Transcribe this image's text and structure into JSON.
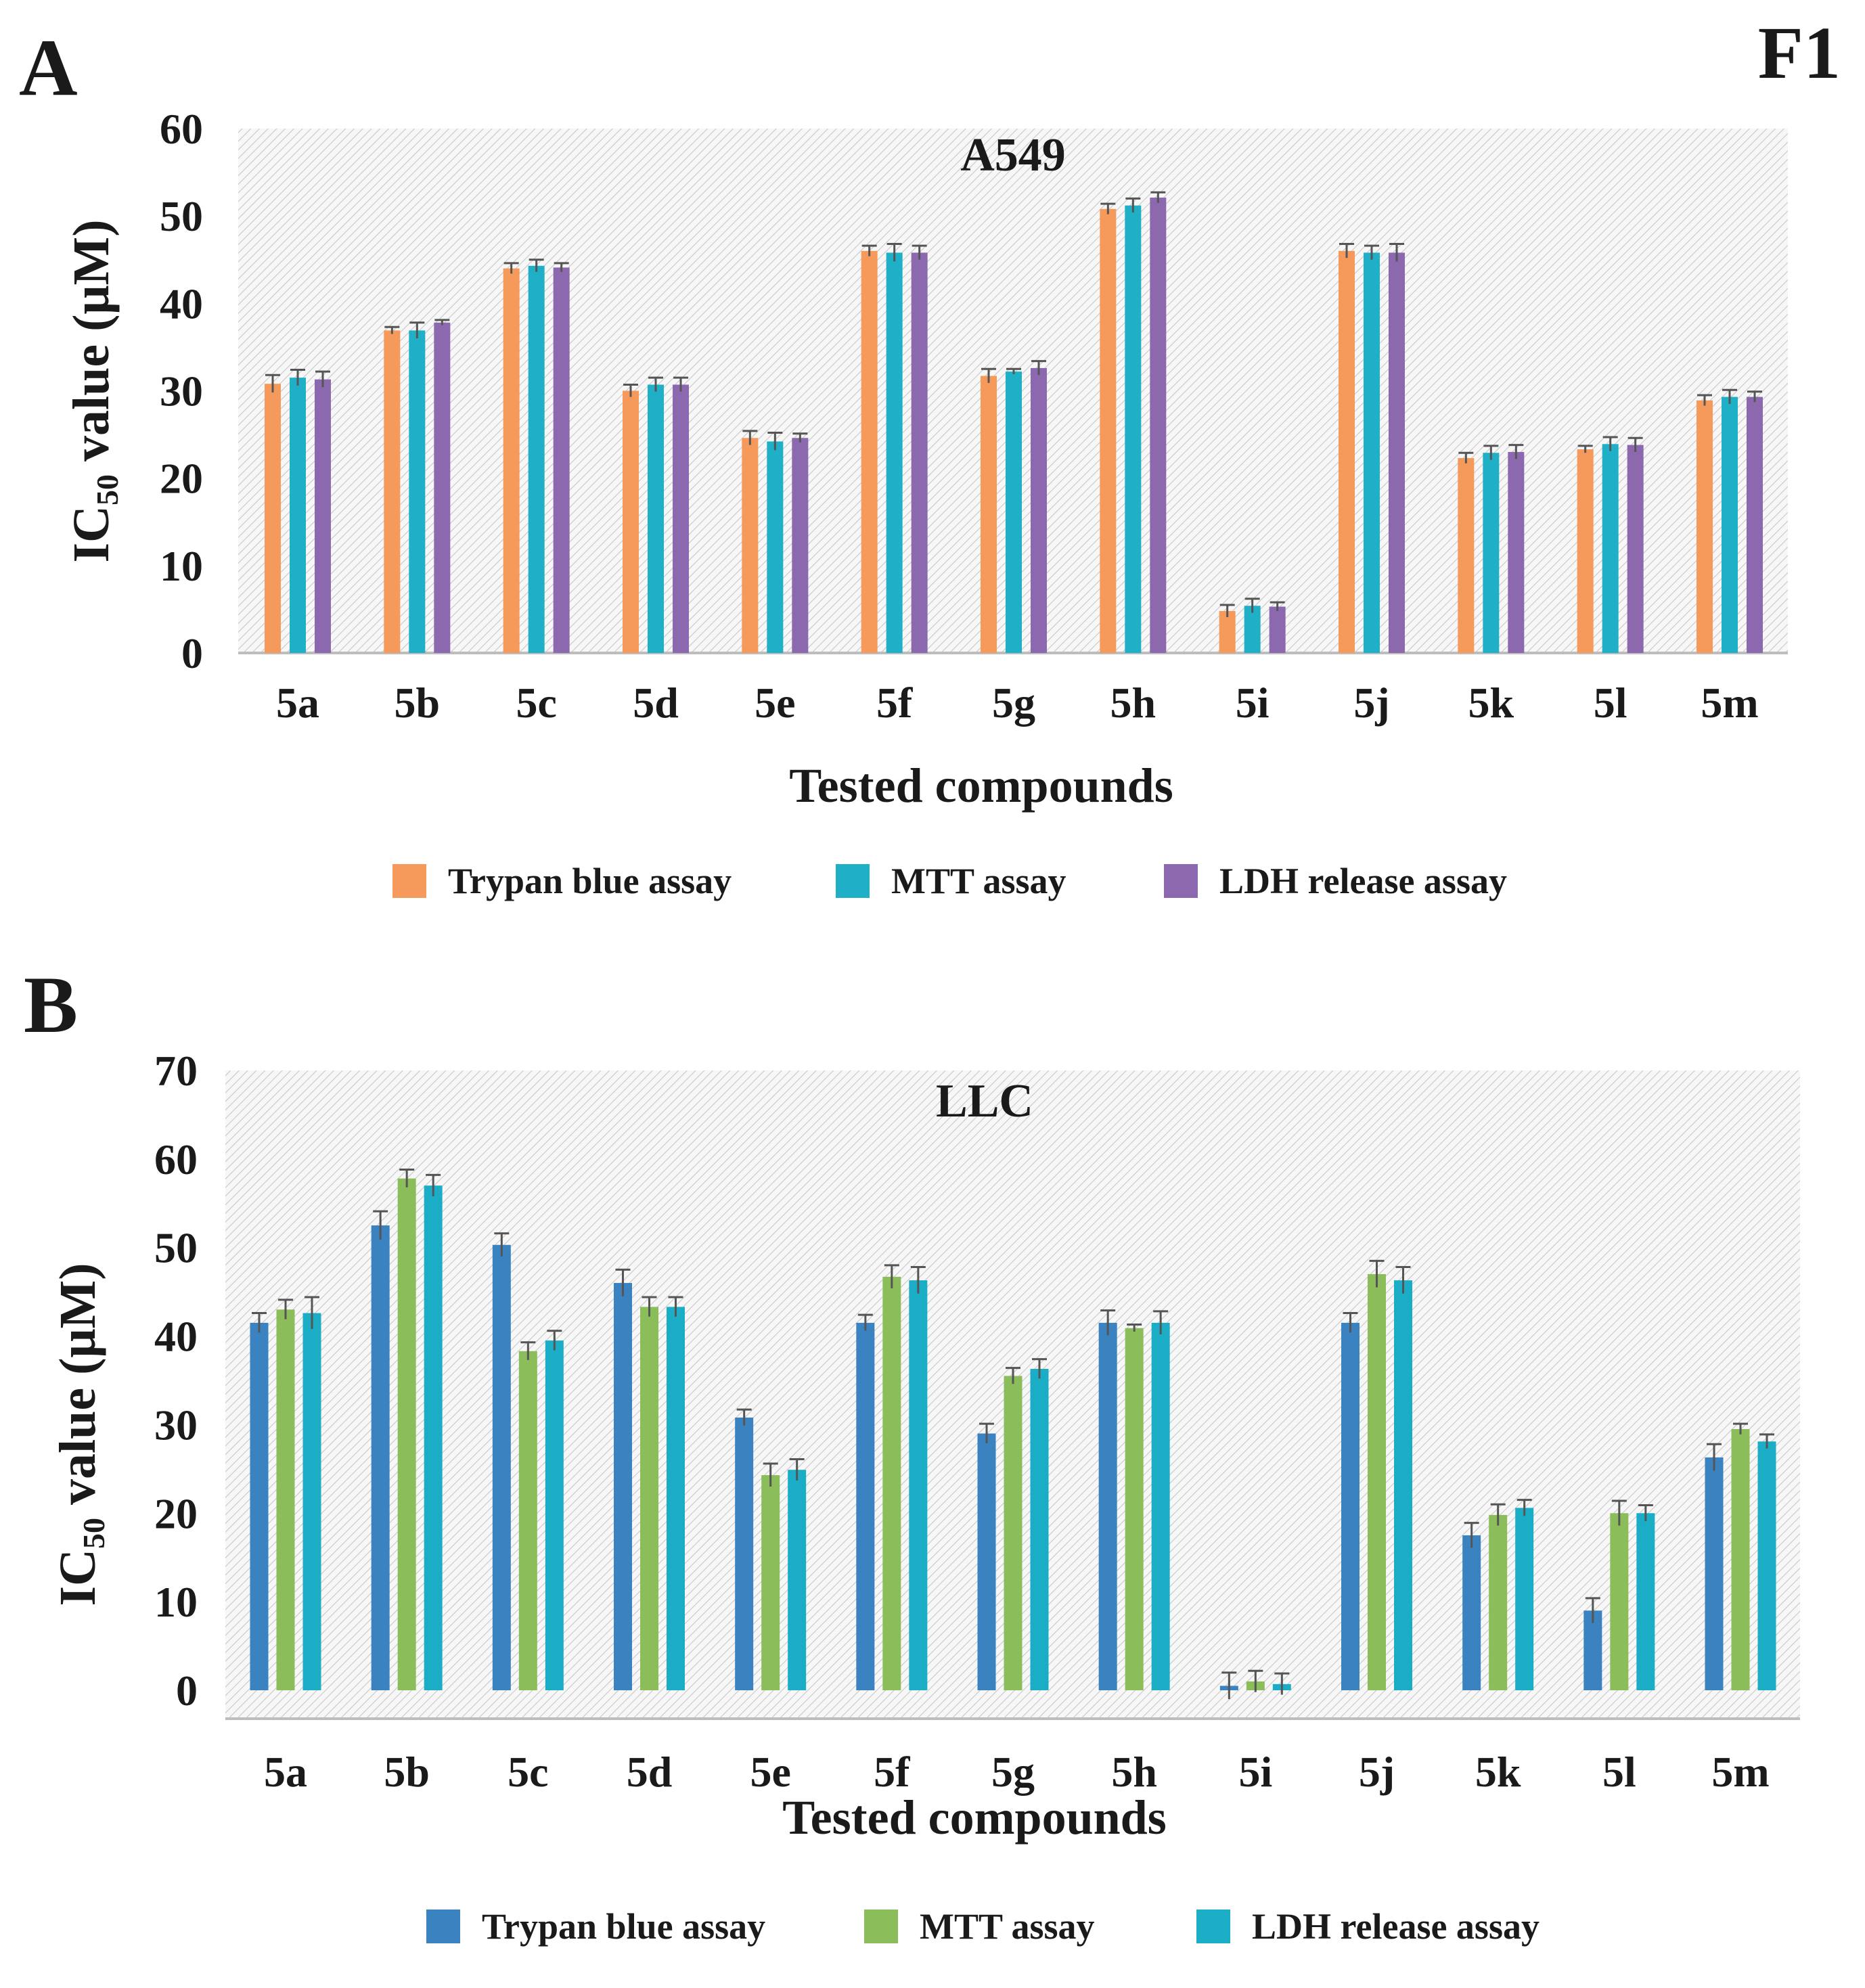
{
  "figure_label": "F1",
  "chart_data": [
    {
      "panel": "A",
      "type": "bar",
      "title": "A549",
      "xlabel": "Tested compounds",
      "ylabel_main": "IC",
      "ylabel_sub": "50",
      "ylabel_rest": " value (μM)",
      "ylim": [
        0,
        60
      ],
      "yticks": [
        0,
        10,
        20,
        30,
        40,
        50,
        60
      ],
      "grid": false,
      "legend_position": "bottom",
      "categories": [
        "5a",
        "5b",
        "5c",
        "5d",
        "5e",
        "5f",
        "5g",
        "5h",
        "5i",
        "5j",
        "5k",
        "5l",
        "5m"
      ],
      "series": [
        {
          "name": "Trypan blue assay",
          "color": "#F59A5A",
          "values": [
            30.8,
            36.9,
            44.0,
            30.0,
            24.6,
            46.0,
            31.7,
            50.8,
            4.8,
            46.0,
            22.3,
            23.3,
            28.9
          ],
          "errors": [
            1.0,
            0.4,
            0.6,
            0.7,
            0.8,
            0.6,
            0.8,
            0.6,
            0.7,
            0.8,
            0.6,
            0.4,
            0.6
          ]
        },
        {
          "name": "MTT assay",
          "color": "#1FAFC7",
          "values": [
            31.5,
            36.9,
            44.3,
            30.7,
            24.2,
            45.8,
            32.2,
            51.2,
            5.4,
            45.8,
            22.9,
            23.9,
            29.3
          ],
          "errors": [
            0.9,
            0.9,
            0.7,
            0.8,
            1.0,
            1.0,
            0.3,
            0.8,
            0.8,
            0.8,
            0.8,
            0.8,
            0.8
          ]
        },
        {
          "name": "LDH release assay",
          "color": "#8C69AF",
          "values": [
            31.3,
            37.8,
            44.1,
            30.7,
            24.6,
            45.8,
            32.6,
            52.1,
            5.3,
            45.8,
            23.0,
            23.8,
            29.3
          ],
          "errors": [
            0.9,
            0.3,
            0.5,
            0.8,
            0.5,
            0.8,
            0.8,
            0.6,
            0.5,
            1.0,
            0.8,
            0.8,
            0.6
          ]
        }
      ]
    },
    {
      "panel": "B",
      "type": "bar",
      "title": "LLC",
      "xlabel": "Tested compounds",
      "ylabel_main": "IC",
      "ylabel_sub": "50",
      "ylabel_rest": " value (μM)",
      "ylim": [
        -5,
        70
      ],
      "yticks": [
        0,
        10,
        20,
        30,
        40,
        50,
        60,
        70
      ],
      "grid": false,
      "legend_position": "bottom",
      "categories": [
        "5a",
        "5b",
        "5c",
        "5d",
        "5e",
        "5f",
        "5g",
        "5h",
        "5i",
        "5j",
        "5k",
        "5l",
        "5m"
      ],
      "series": [
        {
          "name": "Trypan blue assay",
          "color": "#3A82C0",
          "values": [
            41.5,
            52.5,
            50.3,
            46.0,
            30.8,
            41.5,
            29.0,
            41.5,
            0.5,
            41.5,
            17.5,
            9.0,
            26.3
          ],
          "errors": [
            1.1,
            1.6,
            1.3,
            1.5,
            0.9,
            0.9,
            1.1,
            1.4,
            1.5,
            1.1,
            1.4,
            1.4,
            1.5
          ]
        },
        {
          "name": "MTT assay",
          "color": "#8CBD5B",
          "values": [
            43.0,
            57.8,
            38.3,
            43.3,
            24.3,
            46.7,
            35.5,
            40.9,
            1.0,
            47.0,
            19.8,
            20.0,
            29.5
          ],
          "errors": [
            1.1,
            1.0,
            1.0,
            1.1,
            1.3,
            1.3,
            0.9,
            0.4,
            1.2,
            1.5,
            1.2,
            1.4,
            0.6
          ]
        },
        {
          "name": "LDH release assay",
          "color": "#1BADC6",
          "values": [
            42.6,
            57.0,
            39.5,
            43.3,
            24.9,
            46.3,
            36.3,
            41.5,
            0.7,
            46.3,
            20.6,
            20.0,
            28.1
          ],
          "errors": [
            1.8,
            1.2,
            1.1,
            1.1,
            1.2,
            1.5,
            1.1,
            1.3,
            1.2,
            1.5,
            0.9,
            0.9,
            0.8
          ]
        }
      ]
    }
  ]
}
